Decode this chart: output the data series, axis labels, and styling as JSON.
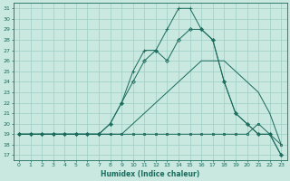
{
  "xlabel": "Humidex (Indice chaleur)",
  "xlim": [
    -0.5,
    23.5
  ],
  "ylim": [
    16.5,
    31.5
  ],
  "yticks": [
    17,
    18,
    19,
    20,
    21,
    22,
    23,
    24,
    25,
    26,
    27,
    28,
    29,
    30,
    31
  ],
  "xticks": [
    0,
    1,
    2,
    3,
    4,
    5,
    6,
    7,
    8,
    9,
    10,
    11,
    12,
    13,
    14,
    15,
    16,
    17,
    18,
    19,
    20,
    21,
    22,
    23
  ],
  "bg_color": "#c8e8e0",
  "grid_color": "#9ecec4",
  "line_color": "#1a6b5c",
  "lines": [
    {
      "x": [
        0,
        1,
        2,
        3,
        4,
        5,
        6,
        7,
        8,
        9,
        10,
        11,
        12,
        13,
        14,
        15,
        16,
        17,
        18,
        19,
        20,
        21,
        22,
        23
      ],
      "y": [
        19,
        19,
        19,
        19,
        19,
        19,
        19,
        19,
        19,
        19,
        19,
        19,
        19,
        19,
        19,
        19,
        19,
        19,
        19,
        19,
        19,
        20,
        19,
        18
      ],
      "marker": "s",
      "markersize": 2.0,
      "lw": 0.7
    },
    {
      "x": [
        0,
        1,
        2,
        3,
        4,
        5,
        6,
        7,
        8,
        9,
        10,
        11,
        12,
        13,
        14,
        15,
        16,
        17,
        18,
        19,
        20,
        21,
        22,
        23
      ],
      "y": [
        19,
        19,
        19,
        19,
        19,
        19,
        19,
        19,
        19,
        19,
        20,
        21,
        22,
        23,
        24,
        25,
        26,
        26,
        26,
        25,
        24,
        23,
        21,
        18
      ],
      "marker": null,
      "markersize": 0,
      "lw": 0.7
    },
    {
      "x": [
        0,
        1,
        2,
        3,
        4,
        5,
        6,
        7,
        8,
        9,
        10,
        11,
        12,
        13,
        14,
        15,
        16,
        17,
        18,
        19,
        20,
        21,
        22,
        23
      ],
      "y": [
        19,
        19,
        19,
        19,
        19,
        19,
        19,
        19,
        20,
        22,
        24,
        26,
        27,
        26,
        28,
        29,
        29,
        28,
        24,
        21,
        20,
        19,
        19,
        17
      ],
      "marker": "D",
      "markersize": 2.0,
      "lw": 0.7
    },
    {
      "x": [
        0,
        1,
        2,
        3,
        4,
        5,
        6,
        7,
        8,
        9,
        10,
        11,
        12,
        13,
        14,
        15,
        16,
        17,
        18,
        19,
        20,
        21,
        22,
        23
      ],
      "y": [
        19,
        19,
        19,
        19,
        19,
        19,
        19,
        19,
        20,
        22,
        25,
        27,
        27,
        29,
        31,
        31,
        29,
        28,
        24,
        21,
        20,
        19,
        19,
        17
      ],
      "marker": "+",
      "markersize": 3.5,
      "lw": 0.7
    }
  ]
}
